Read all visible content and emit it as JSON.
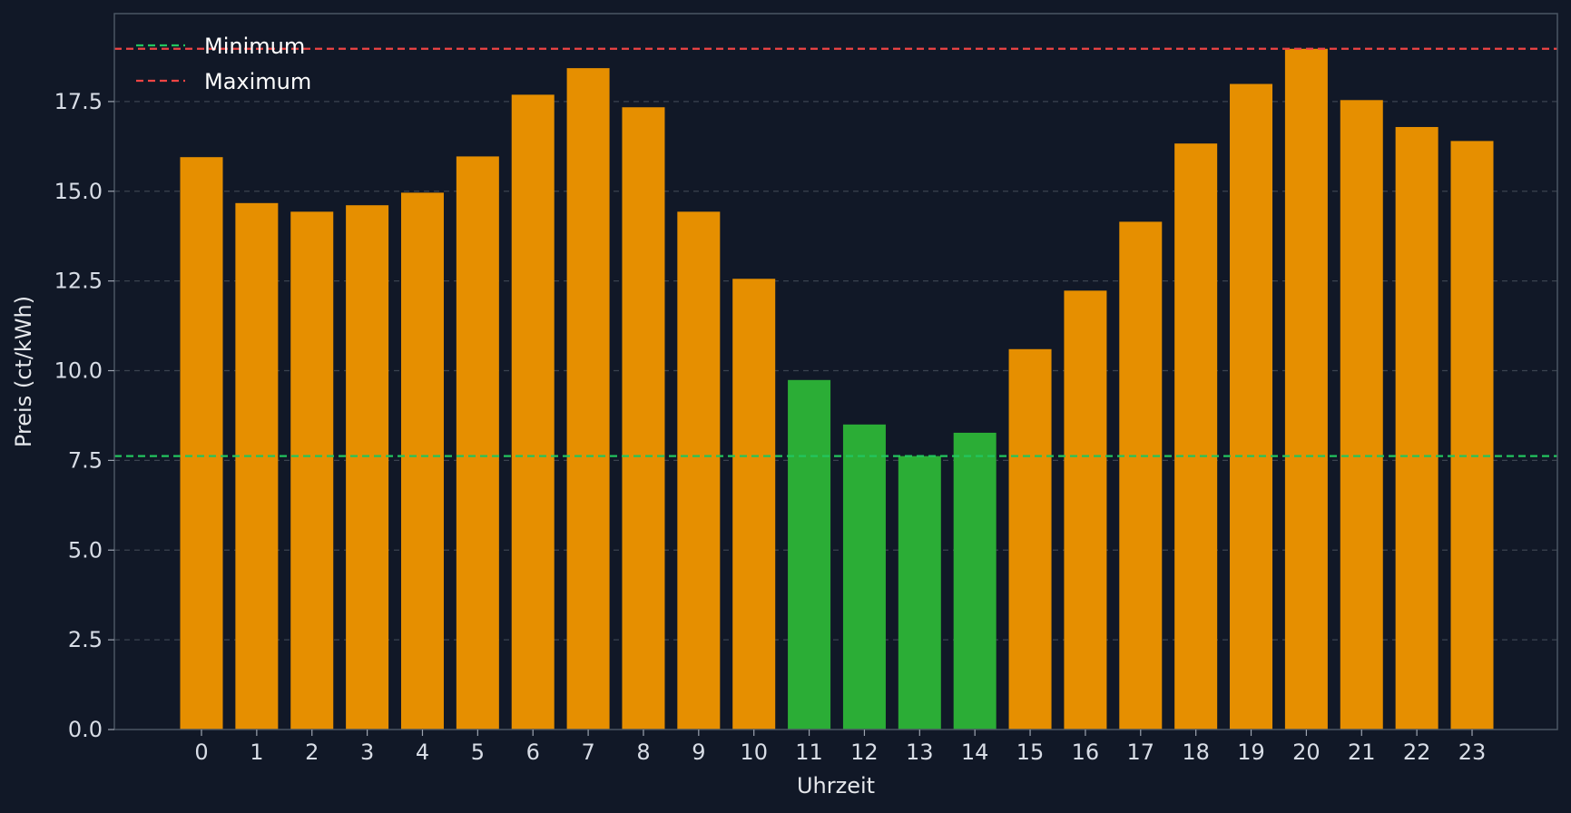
{
  "chart_data": {
    "type": "bar",
    "title": "",
    "xlabel": "Uhrzeit",
    "ylabel": "Preis (ct/kWh)",
    "categories": [
      "0",
      "1",
      "2",
      "3",
      "4",
      "5",
      "6",
      "7",
      "8",
      "9",
      "10",
      "11",
      "12",
      "13",
      "14",
      "15",
      "16",
      "17",
      "18",
      "19",
      "20",
      "21",
      "22",
      "23"
    ],
    "values": [
      15.95,
      14.67,
      14.43,
      14.61,
      14.96,
      15.97,
      17.69,
      18.43,
      17.34,
      14.43,
      12.56,
      9.74,
      8.5,
      7.62,
      8.27,
      10.6,
      12.23,
      14.15,
      16.33,
      17.99,
      18.97,
      17.54,
      16.79,
      16.4
    ],
    "highlight_categories": [
      "11",
      "12",
      "13",
      "14"
    ],
    "ylim": [
      0,
      19.95
    ],
    "yticks": [
      0.0,
      2.5,
      5.0,
      7.5,
      10.0,
      12.5,
      15.0,
      17.5
    ],
    "ytick_labels": [
      "0.0",
      "2.5",
      "5.0",
      "7.5",
      "10.0",
      "12.5",
      "15.0",
      "17.5"
    ],
    "grid": "y, dashed",
    "legend_position": "top-left",
    "reference_lines": [
      {
        "name": "Minimum",
        "value": 7.62,
        "color": "#22c55e"
      },
      {
        "name": "Maximum",
        "value": 18.97,
        "color": "#ef4444"
      }
    ],
    "colors": {
      "background": "#111827",
      "bar": "#e68f00",
      "bar_highlight": "#2bad36",
      "grid": "#3b4350",
      "frame": "#4b5563"
    }
  }
}
